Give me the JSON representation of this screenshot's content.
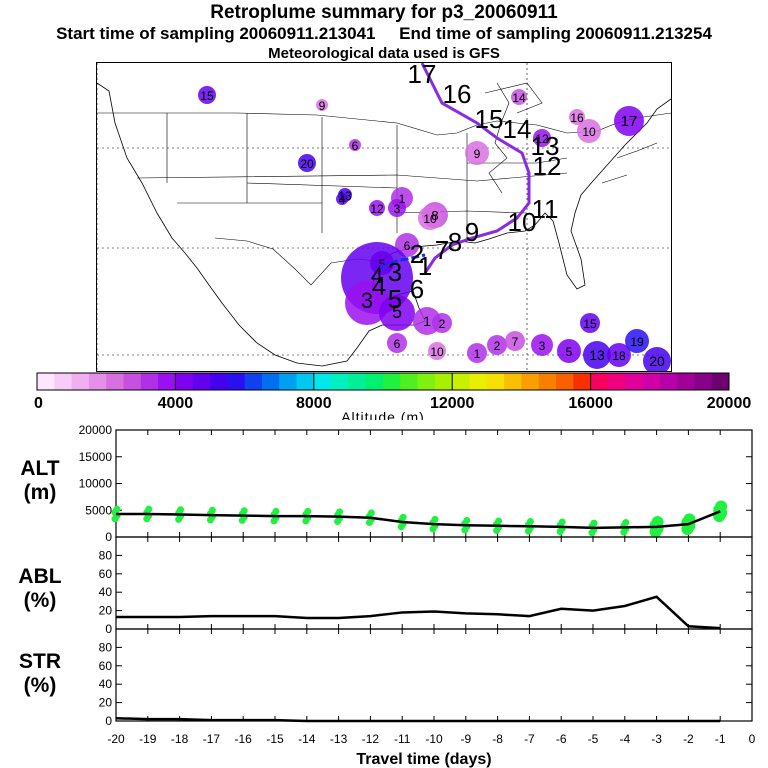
{
  "header": {
    "title": "Retroplume summary for p3_20060911",
    "start_label": "Start time of sampling 20060911.213041",
    "end_label": "End time of sampling 20060911.213254",
    "met_label": "Meteorological data used is GFS"
  },
  "map": {
    "description_markers": [
      {
        "label": "1",
        "alt": 3000
      },
      {
        "label": "2",
        "alt": 3000
      },
      {
        "label": "3",
        "alt": 3500
      },
      {
        "label": "4",
        "alt": 4500
      },
      {
        "label": "5",
        "alt": 4000
      },
      {
        "label": "6",
        "alt": 3000
      },
      {
        "label": "7",
        "alt": 2500
      },
      {
        "label": "8",
        "alt": 2500
      },
      {
        "label": "9",
        "alt": 2000
      },
      {
        "label": "10",
        "alt": 2000
      },
      {
        "label": "11",
        "alt": 3000
      },
      {
        "label": "12",
        "alt": 3500
      },
      {
        "label": "13",
        "alt": 5000
      },
      {
        "label": "14",
        "alt": 2500
      },
      {
        "label": "15",
        "alt": 4500
      },
      {
        "label": "16",
        "alt": 2000
      },
      {
        "label": "17",
        "alt": 4000
      },
      {
        "label": "18",
        "alt": 4500
      },
      {
        "label": "19",
        "alt": 5500
      },
      {
        "label": "20",
        "alt": 5000
      }
    ],
    "main_path_labels": [
      "1",
      "2",
      "3",
      "4",
      "5",
      "6",
      "7",
      "8",
      "9",
      "10",
      "11",
      "12",
      "13",
      "14",
      "15",
      "16",
      "17"
    ]
  },
  "colorbar": {
    "ticks": [
      "0",
      "4000",
      "8000",
      "12000",
      "16000",
      "20000"
    ],
    "label": "Altitude (m)",
    "colors": [
      "#ffe6ff",
      "#f8ccf8",
      "#f0b0f0",
      "#e590e8",
      "#d870e0",
      "#c850e0",
      "#b030e8",
      "#9a10f0",
      "#8000f0",
      "#6400f0",
      "#4600f0",
      "#2810f0",
      "#1040f0",
      "#0070f0",
      "#00a0f0",
      "#00c8f0",
      "#00e8e8",
      "#00f0c0",
      "#00f098",
      "#00f070",
      "#20f040",
      "#50f020",
      "#80f010",
      "#a8f000",
      "#c8f000",
      "#e8f000",
      "#f8e000",
      "#f8c000",
      "#f8a000",
      "#f88000",
      "#f86000",
      "#f83000",
      "#f80060",
      "#f00080",
      "#e0009a",
      "#d000a8",
      "#b800a8",
      "#a00098",
      "#880088",
      "#700070"
    ]
  },
  "chart_data": [
    {
      "type": "line",
      "panel": "ALT",
      "title": "ALT",
      "ylabel": "(m)",
      "ylim": [
        0,
        20000
      ],
      "yticks": [
        "0",
        "5000",
        "10000",
        "15000",
        "20000"
      ],
      "x": [
        -20,
        -19,
        -18,
        -17,
        -16,
        -15,
        -14,
        -13,
        -12,
        -11,
        -10,
        -9,
        -8,
        -7,
        -6,
        -5,
        -4,
        -3,
        -2,
        -1
      ],
      "series": [
        {
          "name": "median altitude",
          "values": [
            4300,
            4300,
            4200,
            4100,
            4000,
            3900,
            3900,
            3800,
            3600,
            2800,
            2400,
            2200,
            2100,
            2000,
            1900,
            1700,
            1800,
            1900,
            2400,
            4800
          ]
        }
      ],
      "points_color": "#20f040"
    },
    {
      "type": "line",
      "panel": "ABL",
      "title": "ABL",
      "ylabel": "(%)",
      "ylim": [
        0,
        100
      ],
      "yticks": [
        "0",
        "20",
        "40",
        "60",
        "80"
      ],
      "x": [
        -20,
        -19,
        -18,
        -17,
        -16,
        -15,
        -14,
        -13,
        -12,
        -11,
        -10,
        -9,
        -8,
        -7,
        -6,
        -5,
        -4,
        -3,
        -2,
        -1
      ],
      "series": [
        {
          "name": "ABL fraction",
          "values": [
            13,
            13,
            13,
            14,
            14,
            14,
            12,
            12,
            14,
            18,
            19,
            17,
            16,
            14,
            22,
            20,
            25,
            35,
            3,
            1
          ]
        }
      ]
    },
    {
      "type": "line",
      "panel": "STR",
      "title": "STR",
      "ylabel": "(%)",
      "ylim": [
        0,
        100
      ],
      "yticks": [
        "0",
        "20",
        "40",
        "60",
        "80"
      ],
      "x": [
        -20,
        -19,
        -18,
        -17,
        -16,
        -15,
        -14,
        -13,
        -12,
        -11,
        -10,
        -9,
        -8,
        -7,
        -6,
        -5,
        -4,
        -3,
        -2,
        -1
      ],
      "series": [
        {
          "name": "STR fraction",
          "values": [
            3,
            2,
            2,
            1,
            1,
            1,
            0,
            0,
            0,
            0,
            0,
            0,
            0,
            0,
            0,
            0,
            0,
            0,
            0,
            0
          ]
        }
      ],
      "xlabel": "Travel time (days)",
      "xticks": [
        "-20",
        "-19",
        "-18",
        "-17",
        "-16",
        "-15",
        "-14",
        "-13",
        "-12",
        "-11",
        "-10",
        "-9",
        "-8",
        "-7",
        "-6",
        "-5",
        "-4",
        "-3",
        "-2",
        "-1",
        "0"
      ]
    }
  ]
}
